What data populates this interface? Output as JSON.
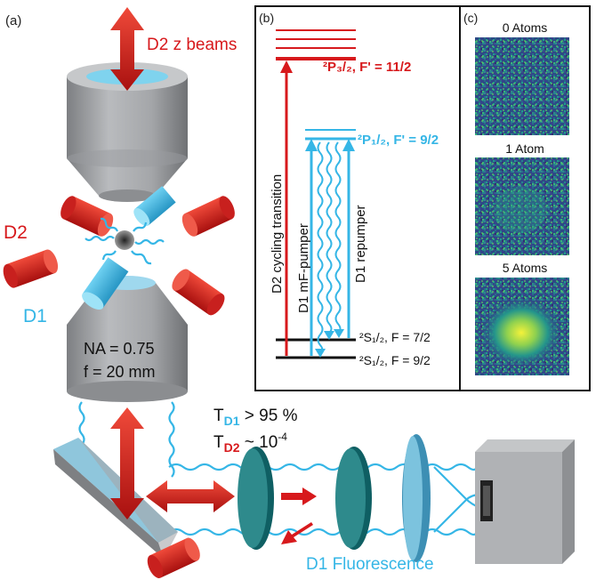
{
  "panels": {
    "a": "(a)",
    "b": "(b)",
    "c": "(c)"
  },
  "labels": {
    "d2_z_beams": "D2 z beams",
    "d2": "D2",
    "d1": "D1",
    "na": "NA = 0.75",
    "focal": "f = 20 mm",
    "t_d1_prefix": "T",
    "t_d1_sub": "D1",
    "t_d1_value": " > 95 %",
    "t_d2_prefix": "T",
    "t_d2_sub": "D2",
    "t_d2_value": " ~ 10",
    "t_d2_exp": "-4",
    "fluorescence": "D1 Fluorescence"
  },
  "levels": {
    "p32": "²P₃/₂, F' = 11/2",
    "p12": "²P₁/₂, F' = 9/2",
    "s72": "²S₁/₂, F = 7/2",
    "s92": "²S₁/₂, F = 9/2"
  },
  "transitions": {
    "d2_cycling": "D2 cycling transition",
    "d1_mf": "D1 mF-pumper",
    "d1_repump": "D1 repumper"
  },
  "images": {
    "zero": "0 Atoms",
    "one": "1 Atom",
    "five": "5 Atoms"
  },
  "colors": {
    "red": "#d7191c",
    "blue": "#35b6e6",
    "teal": "#1d6b6e",
    "gray": "#a7a9ac"
  }
}
